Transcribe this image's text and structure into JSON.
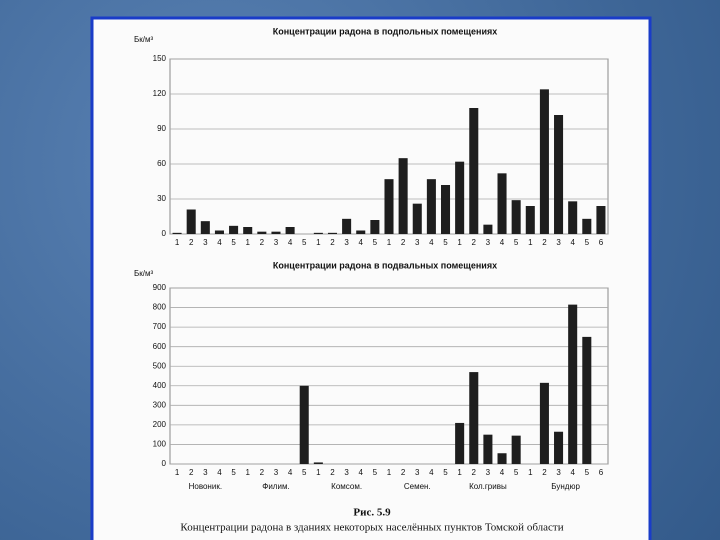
{
  "chart_data": [
    {
      "type": "bar",
      "title": "Концентрации радона в подпольных помещениях",
      "y_label": "Бк/м³",
      "categories": [
        "1",
        "2",
        "3",
        "4",
        "5",
        "1",
        "2",
        "3",
        "4",
        "5",
        "1",
        "2",
        "3",
        "4",
        "5",
        "1",
        "2",
        "3",
        "4",
        "5",
        "1",
        "2",
        "3",
        "4",
        "5",
        "1",
        "2",
        "3",
        "4",
        "5",
        "6"
      ],
      "values": [
        1,
        21,
        11,
        3,
        7,
        6,
        2,
        2,
        6,
        0,
        1,
        1,
        13,
        3,
        12,
        47,
        65,
        26,
        47,
        42,
        62,
        108,
        8,
        52,
        29,
        24,
        124,
        102,
        28,
        13,
        24
      ],
      "color": "#1e1e1e",
      "ylim": [
        0,
        150
      ],
      "yticks": [
        0,
        30,
        60,
        90,
        120,
        150
      ],
      "grid": true
    },
    {
      "type": "bar",
      "title": "Концентрации радона в подвальных помещениях",
      "y_label": "Бк/м³",
      "categories": [
        "1",
        "2",
        "3",
        "4",
        "5",
        "1",
        "2",
        "3",
        "4",
        "5",
        "1",
        "2",
        "3",
        "4",
        "5",
        "1",
        "2",
        "3",
        "4",
        "5",
        "1",
        "2",
        "3",
        "4",
        "5",
        "1",
        "2",
        "3",
        "4",
        "5",
        "6"
      ],
      "groups": [
        "Новоник.",
        "Филим.",
        "Комсом.",
        "Семен.",
        "Кол.гривы",
        "Бундюр"
      ],
      "values": [
        0,
        0,
        0,
        0,
        0,
        0,
        0,
        0,
        0,
        400,
        8,
        0,
        0,
        0,
        0,
        0,
        0,
        0,
        0,
        0,
        210,
        470,
        150,
        55,
        145,
        0,
        415,
        165,
        815,
        650,
        0
      ],
      "color": "#1e1e1e",
      "ylim": [
        0,
        900
      ],
      "yticks": [
        0,
        100,
        200,
        300,
        400,
        500,
        600,
        700,
        800,
        900
      ],
      "grid": true
    }
  ],
  "figure": {
    "number": "Рис. 5.9",
    "caption": "Концентрации радона в зданиях некоторых населённых пунктов Томской области"
  }
}
